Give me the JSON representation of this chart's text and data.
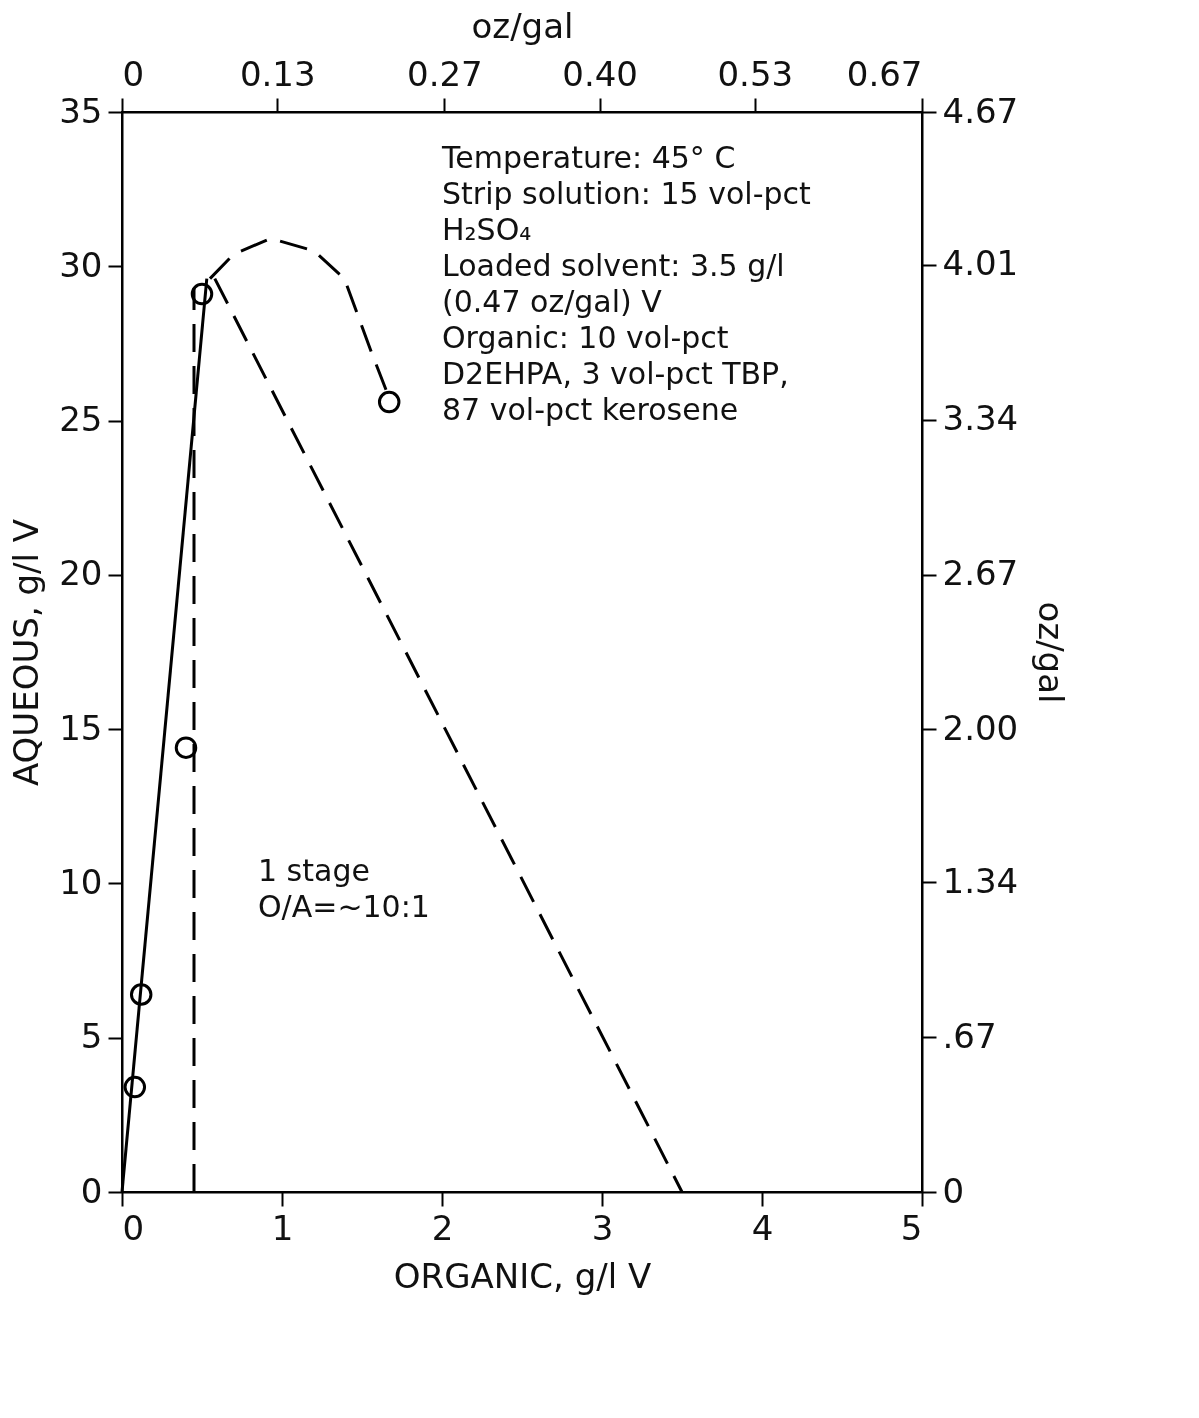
{
  "chart_data": {
    "type": "line",
    "xlabel": "ORGANIC, g/l V",
    "ylabel": "AQUEOUS, g/l V",
    "x2label": "oz/gal",
    "y2label": "oz/gal",
    "xlim": [
      0,
      5
    ],
    "xticks": [
      0,
      1,
      2,
      3,
      4,
      5
    ],
    "ylim": [
      0,
      35
    ],
    "yticks": [
      0,
      5,
      10,
      15,
      20,
      25,
      30,
      35
    ],
    "x2lim": [
      0,
      0.67
    ],
    "x2ticks": [
      0,
      0.13,
      0.27,
      {
        "value": 0.4,
        "label": "0.40"
      },
      0.53,
      0.67
    ],
    "y2lim": [
      0,
      4.67
    ],
    "y2ticks": [
      0,
      {
        "value": 0.67,
        "label": ".67"
      },
      1.34,
      {
        "value": 2,
        "label": "2.00"
      },
      2.67,
      3.34,
      4.01,
      4.67
    ],
    "grid": false,
    "series": [
      {
        "type": "scatter",
        "marker": "circle",
        "color": "#000000",
        "x": [
          0.08,
          0.12,
          0.4,
          0.5,
          1.67
        ],
        "values": [
          3.4,
          6.4,
          14.4,
          29.1,
          25.6
        ]
      },
      {
        "line_style": "solid",
        "marker": "none",
        "color": "#000000",
        "x": [
          0,
          0.53
        ],
        "values": [
          0,
          29.6
        ]
      },
      {
        "line_style": "dashed",
        "marker": "none",
        "color": "#000000",
        "x": [
          0.55,
          0.7,
          0.93,
          1.2,
          1.39,
          1.56,
          1.65
        ],
        "values": [
          29.6,
          30.4,
          30.9,
          30.5,
          29.6,
          27.2,
          26.0
        ]
      },
      {
        "line_style": "dashed",
        "marker": "none",
        "color": "#000000",
        "x": [
          0.58,
          3.5
        ],
        "values": [
          29.6,
          0
        ]
      },
      {
        "line_style": "dashed",
        "marker": "none",
        "color": "#000000",
        "x": [
          0.45,
          0.45
        ],
        "values": [
          0,
          29.3
        ]
      }
    ],
    "annotations": [
      "Temperature: 45° C\nStrip solution: 15 vol-pct\nH₂SO₄\nLoaded solvent: 3.5 g/l\n(0.47 oz/gal) V\nOrganic: 10 vol-pct\nD2EHPA, 3 vol-pct TBP,\n87 vol-pct kerosene",
      "1 stage\nO/A=~10:1"
    ]
  }
}
